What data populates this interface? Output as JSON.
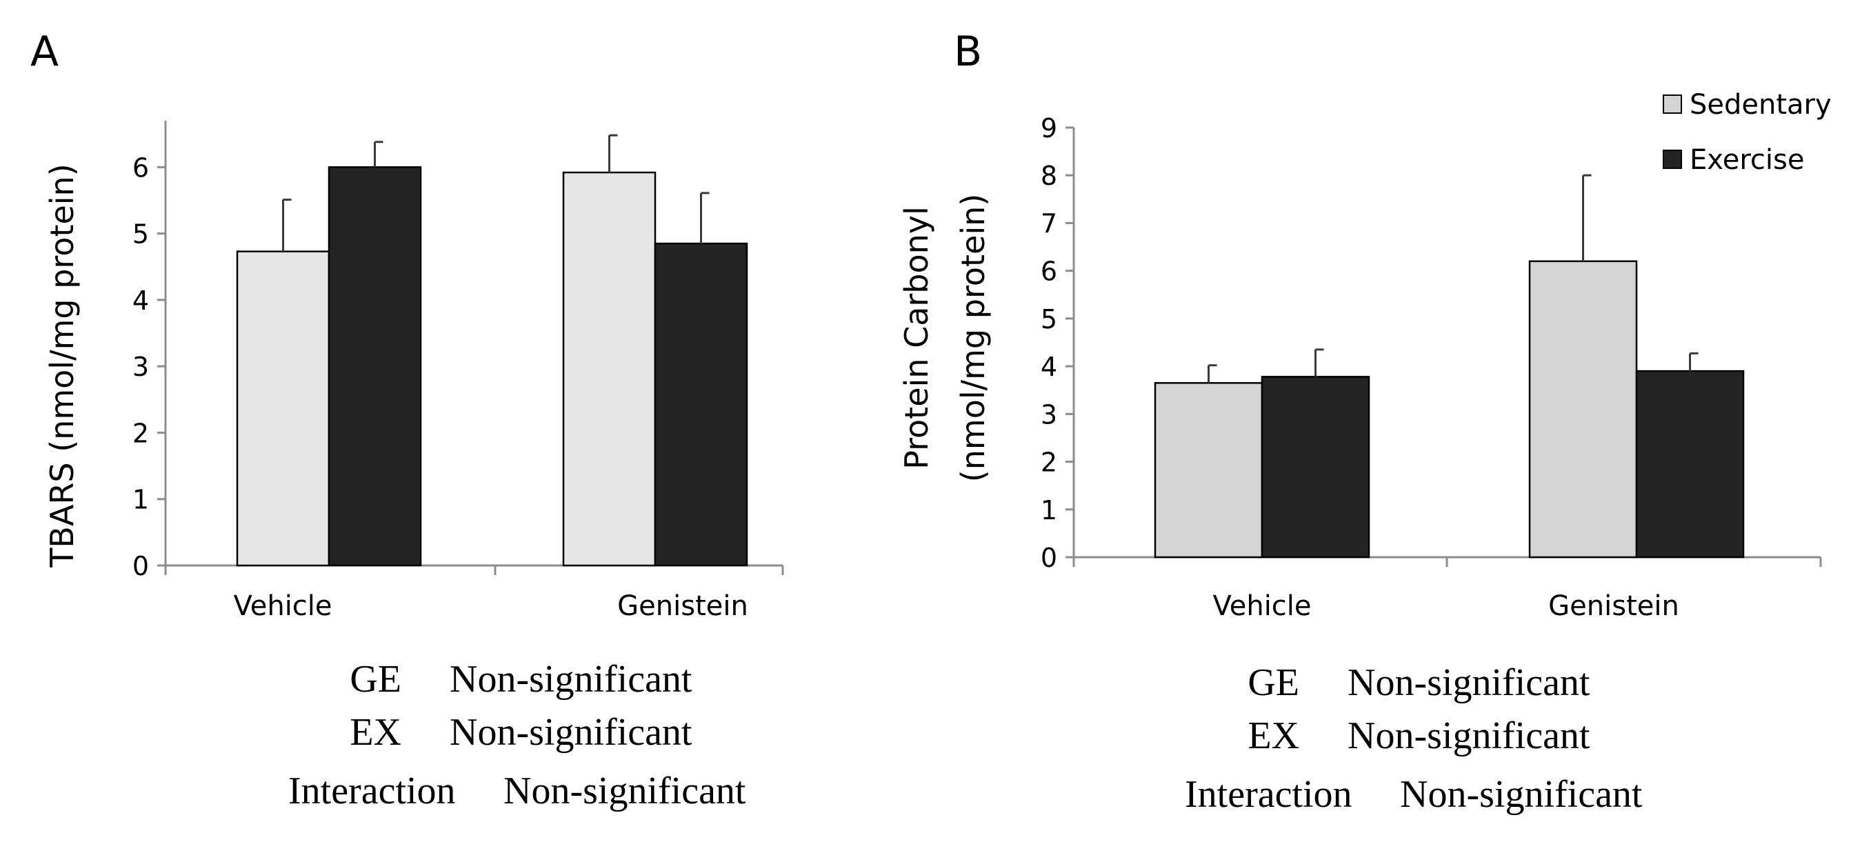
{
  "colors": {
    "sedentary_fill_a": "#e6e6e6",
    "sedentary_fill_b": "#d4d4d4",
    "exercise_fill": "#242424",
    "axis": "#8c8c8c",
    "text": "#000000"
  },
  "chart_data": [
    {
      "type": "bar",
      "panel_label": "A",
      "title": "",
      "xlabel": "",
      "ylabel": "TBARS (nmol/mg protein)",
      "ylim": [
        0,
        6.7
      ],
      "yticks": [
        0,
        1,
        2,
        3,
        4,
        5,
        6
      ],
      "categories": [
        "Vehicle",
        "Genistein"
      ],
      "series": [
        {
          "name": "Sedentary",
          "values": [
            4.73,
            5.92
          ],
          "errors": [
            0.78,
            0.56
          ]
        },
        {
          "name": "Exercise",
          "values": [
            6.0,
            4.85
          ],
          "errors": [
            0.38,
            0.76
          ]
        }
      ],
      "stats": [
        {
          "label": "GE",
          "value": "Non-significant"
        },
        {
          "label": "EX",
          "value": "Non-significant"
        },
        {
          "label": "Interaction",
          "value": "Non-significant"
        }
      ]
    },
    {
      "type": "bar",
      "panel_label": "B",
      "title": "",
      "xlabel": "",
      "ylabel_line1": "Protein Carbonyl",
      "ylabel_line2": "(nmol/mg protein)",
      "ylim": [
        0,
        9
      ],
      "yticks": [
        0,
        1,
        2,
        3,
        4,
        5,
        6,
        7,
        8,
        9
      ],
      "categories": [
        "Vehicle",
        "Genistein"
      ],
      "legend": {
        "position": "top-right",
        "entries": [
          "Sedentary",
          "Exercise"
        ]
      },
      "series": [
        {
          "name": "Sedentary",
          "values": [
            3.65,
            6.2
          ],
          "errors": [
            0.37,
            1.8
          ]
        },
        {
          "name": "Exercise",
          "values": [
            3.78,
            3.9
          ],
          "errors": [
            0.57,
            0.37
          ]
        }
      ],
      "stats": [
        {
          "label": "GE",
          "value": "Non-significant"
        },
        {
          "label": "EX",
          "value": "Non-significant"
        },
        {
          "label": "Interaction",
          "value": "Non-significant"
        }
      ]
    }
  ]
}
